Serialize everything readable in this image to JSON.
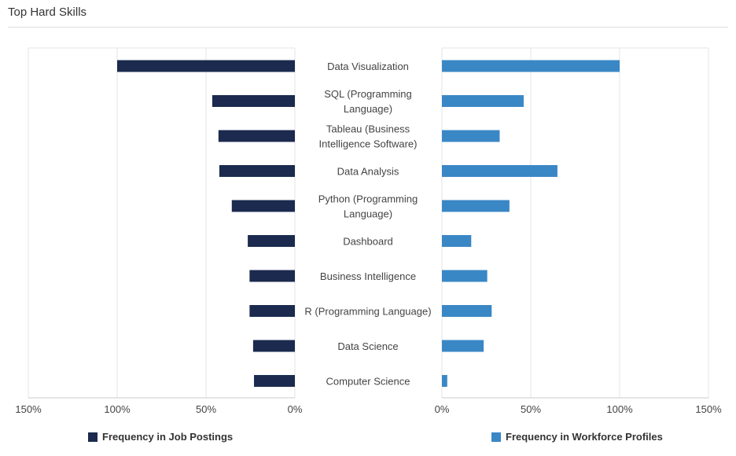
{
  "header": {
    "title": "Top Hard Skills"
  },
  "colors": {
    "postings": "#1b2a4e",
    "profiles": "#3a87c6",
    "grid": "#e6e6e6",
    "axis": "#cccccc",
    "text": "#444444"
  },
  "chart_data": {
    "type": "bar",
    "orientation": "horizontal-butterfly",
    "grid": true,
    "legend_position": "bottom",
    "categories": [
      "Data Visualization",
      "SQL (Programming Language)",
      "Tableau (Business Intelligence Software)",
      "Data Analysis",
      "Python (Programming Language)",
      "Dashboard",
      "Business Intelligence",
      "R (Programming Language)",
      "Data Science",
      "Computer Science"
    ],
    "category_lines": [
      [
        "Data Visualization"
      ],
      [
        "SQL (Programming",
        "Language)"
      ],
      [
        "Tableau (Business",
        "Intelligence Software)"
      ],
      [
        "Data Analysis"
      ],
      [
        "Python (Programming",
        "Language)"
      ],
      [
        "Dashboard"
      ],
      [
        "Business Intelligence"
      ],
      [
        "R (Programming Language)"
      ],
      [
        "Data Science"
      ],
      [
        "Computer Science"
      ]
    ],
    "series": [
      {
        "name": "Frequency in Job Postings",
        "side": "left",
        "values": [
          100,
          46.5,
          43,
          42.5,
          35.5,
          26.5,
          25.5,
          25.5,
          23.5,
          23
        ]
      },
      {
        "name": "Frequency in Workforce Profiles",
        "side": "right",
        "values": [
          100,
          46,
          32.5,
          65,
          38,
          16.5,
          25.5,
          28,
          23.5,
          3
        ]
      }
    ],
    "xlim": [
      0,
      150
    ],
    "ticks": [
      0,
      50,
      100,
      150
    ],
    "tick_labels": [
      "0%",
      "50%",
      "100%",
      "150%"
    ]
  }
}
